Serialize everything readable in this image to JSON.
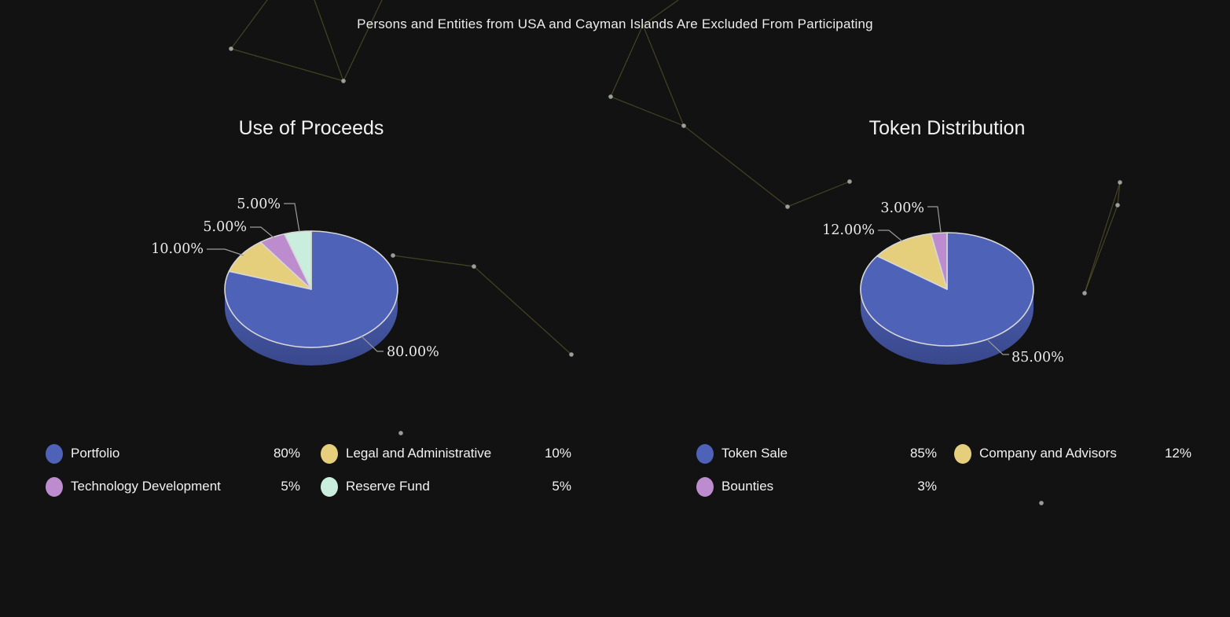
{
  "page": {
    "header": "Persons and Entities from USA and Cayman Islands Are Excluded From Participating",
    "background_color": "#121212",
    "constellation": {
      "line_color": "#6b6b33",
      "dot_color": "#b0b5b0"
    }
  },
  "chart_data": [
    {
      "type": "pie",
      "style": "3d",
      "title": "Use of Proceeds",
      "start_angle": "top",
      "direction": "clockwise",
      "legend_position": "bottom",
      "side_color_top": "#4a5cad",
      "side_color_bottom": "#39488c",
      "slice_stroke_color": "#d7d7d7",
      "leader_line_color": "#9b9b9b",
      "series": [
        {
          "label": "Portfolio",
          "value": 80,
          "slice_label": "80.00%",
          "legend_value": "80%",
          "color": "#4e62b8"
        },
        {
          "label": "Legal and Administrative",
          "value": 10,
          "slice_label": "10.00%",
          "legend_value": "10%",
          "color": "#e5cf7d"
        },
        {
          "label": "Technology Development",
          "value": 5,
          "slice_label": "5.00%",
          "legend_value": "5%",
          "color": "#bd8ccf"
        },
        {
          "label": "Reserve Fund",
          "value": 5,
          "slice_label": "5.00%",
          "legend_value": "5%",
          "color": "#c9eedd"
        }
      ]
    },
    {
      "type": "pie",
      "style": "3d",
      "title": "Token Distribution",
      "start_angle": "top",
      "direction": "clockwise",
      "legend_position": "bottom",
      "side_color_top": "#4a5cad",
      "side_color_bottom": "#39488c",
      "slice_stroke_color": "#d7d7d7",
      "leader_line_color": "#9b9b9b",
      "series": [
        {
          "label": "Token Sale",
          "value": 85,
          "slice_label": "85.00%",
          "legend_value": "85%",
          "color": "#4e62b8"
        },
        {
          "label": "Company and Advisors",
          "value": 12,
          "slice_label": "12.00%",
          "legend_value": "12%",
          "color": "#e5cf7d"
        },
        {
          "label": "Bounties",
          "value": 3,
          "slice_label": "3.00%",
          "legend_value": "3%",
          "color": "#bd8ccf"
        }
      ]
    }
  ]
}
